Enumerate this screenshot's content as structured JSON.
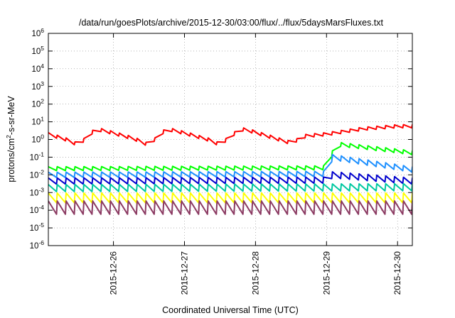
{
  "chart_data": {
    "type": "line",
    "title": "/data/run/goesPlots/archive/2015-12-30/03:00/flux/../flux/5daysMarsFluxes.txt",
    "xlabel": "Coordinated Universal Time (UTC)",
    "ylabel": "protons/cm2-s-sr-MeV",
    "ylabel_parts": {
      "before": "protons/cm",
      "sup": "2",
      "after": "-s-sr-MeV"
    },
    "yscale": "log",
    "ylim_exponent": [
      -6,
      6
    ],
    "yticks_exponent": [
      -6,
      -5,
      -4,
      -3,
      -2,
      -1,
      0,
      1,
      2,
      3,
      4,
      5,
      6
    ],
    "ytick_base": "10",
    "xlim": [
      "2015-12-25 02:00",
      "2015-12-30 05:00"
    ],
    "xticks": [
      {
        "label": "2015-12-26",
        "date": "2015-12-26 00:00"
      },
      {
        "label": "2015-12-27",
        "date": "2015-12-27 00:00"
      },
      {
        "label": "2015-12-28",
        "date": "2015-12-28 00:00"
      },
      {
        "label": "2015-12-29",
        "date": "2015-12-29 00:00"
      },
      {
        "label": "2015-12-30",
        "date": "2015-12-30 00:00"
      }
    ],
    "grid": true,
    "legend": "none",
    "series": [
      {
        "color": "#ff0000",
        "log10_values_at_anchor_dates": [
          [
            "2015-12-25 02:00",
            0.3
          ],
          [
            "2015-12-25 08:00",
            0.0
          ],
          [
            "2015-12-25 12:00",
            -0.3
          ],
          [
            "2015-12-25 15:00",
            0.1
          ],
          [
            "2015-12-25 18:00",
            0.6
          ],
          [
            "2015-12-25 22:00",
            0.45
          ],
          [
            "2015-12-26 07:00",
            0.05
          ],
          [
            "2015-12-26 11:00",
            -0.25
          ],
          [
            "2015-12-26 14:00",
            0.0
          ],
          [
            "2015-12-26 18:00",
            0.6
          ],
          [
            "2015-12-26 22:00",
            0.45
          ],
          [
            "2015-12-27 08:00",
            0.0
          ],
          [
            "2015-12-27 12:00",
            -0.3
          ],
          [
            "2015-12-27 15:00",
            0.1
          ],
          [
            "2015-12-27 19:00",
            0.6
          ],
          [
            "2015-12-27 23:00",
            0.45
          ],
          [
            "2015-12-28 08:00",
            0.0
          ],
          [
            "2015-12-28 12:00",
            -0.2
          ],
          [
            "2015-12-28 17:00",
            0.2
          ],
          [
            "2015-12-29 00:00",
            0.3
          ],
          [
            "2015-12-29 12:00",
            0.6
          ],
          [
            "2015-12-30 00:00",
            0.75
          ],
          [
            "2015-12-30 05:00",
            0.75
          ]
        ],
        "tooth_amplitude": 0.18
      },
      {
        "color": "#00ff00",
        "log10_values_at_anchor_dates": [
          [
            "2015-12-25 02:00",
            -1.65
          ],
          [
            "2015-12-29 00:00",
            -1.6
          ],
          [
            "2015-12-29 01:30",
            -1.0
          ],
          [
            "2015-12-29 03:00",
            -0.25
          ],
          [
            "2015-12-30 05:00",
            -0.75
          ]
        ],
        "tooth_amplitude": 0.22
      },
      {
        "color": "#1e90ff",
        "log10_values_at_anchor_dates": [
          [
            "2015-12-25 02:00",
            -2.0
          ],
          [
            "2015-12-29 00:00",
            -1.95
          ],
          [
            "2015-12-29 02:00",
            -1.0
          ],
          [
            "2015-12-30 05:00",
            -1.7
          ]
        ],
        "tooth_amplitude": 0.3
      },
      {
        "color": "#0000cd",
        "log10_values_at_anchor_dates": [
          [
            "2015-12-25 02:00",
            -2.35
          ],
          [
            "2015-12-29 00:00",
            -2.3
          ],
          [
            "2015-12-29 02:00",
            -2.0
          ],
          [
            "2015-12-30 05:00",
            -2.35
          ]
        ],
        "tooth_amplitude": 0.35
      },
      {
        "color": "#00c8a0",
        "log10_values_at_anchor_dates": [
          [
            "2015-12-25 02:00",
            -2.75
          ],
          [
            "2015-12-30 05:00",
            -2.7
          ]
        ],
        "tooth_amplitude": 0.4
      },
      {
        "color": "#ffff00",
        "log10_values_at_anchor_dates": [
          [
            "2015-12-25 02:00",
            -3.3
          ],
          [
            "2015-12-30 05:00",
            -3.3
          ]
        ],
        "tooth_amplitude": 0.55
      },
      {
        "color": "#8b3a62",
        "log10_values_at_anchor_dates": [
          [
            "2015-12-25 02:00",
            -3.85
          ],
          [
            "2015-12-30 05:00",
            -3.85
          ]
        ],
        "tooth_amplitude": 0.75
      }
    ]
  }
}
